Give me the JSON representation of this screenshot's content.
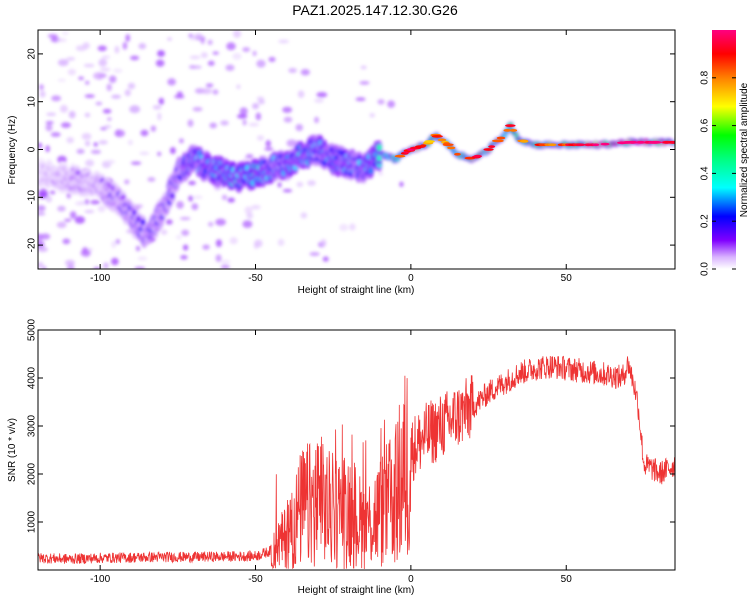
{
  "title": "PAZ1.2025.147.12.30.G26",
  "chart_data": [
    {
      "type": "heatmap",
      "xlabel": "Height of straight line (km)",
      "ylabel": "Frequency (Hz)",
      "xlim": [
        -120,
        85
      ],
      "ylim": [
        -25,
        25
      ],
      "xticks": [
        -100,
        -50,
        0,
        50
      ],
      "yticks": [
        -20,
        -10,
        0,
        10,
        20
      ],
      "colorbar": {
        "label": "Normalized spectral amplitude",
        "range": [
          0,
          1
        ],
        "ticks": [
          0.0,
          0.2,
          0.4,
          0.6,
          0.8
        ],
        "tick_labels": [
          "0.0",
          "0.2",
          "0.4",
          "0.6",
          "0.8"
        ],
        "colormap": [
          "#ffffff",
          "#8000ff",
          "#0000ff",
          "#00ffff",
          "#00ff00",
          "#ffff00",
          "#ff8000",
          "#ff0000",
          "#ff0080"
        ]
      },
      "ridge": {
        "x": [
          -120,
          -110,
          -100,
          -95,
          -90,
          -85,
          -80,
          -75,
          -70,
          -65,
          -60,
          -55,
          -50,
          -45,
          -40,
          -35,
          -30,
          -25,
          -20,
          -15,
          -10,
          -5,
          0,
          5,
          8,
          12,
          15,
          20,
          25,
          30,
          32,
          35,
          40,
          50,
          60,
          70,
          80,
          85
        ],
        "y": [
          -5,
          -6,
          -8,
          -10,
          -14,
          -18,
          -13,
          -5,
          -2,
          -4,
          -5,
          -6,
          -5,
          -4,
          -3,
          -1,
          0,
          -2,
          -3,
          -4,
          -1,
          -2,
          0,
          1,
          3,
          1,
          -1,
          -2,
          0,
          3,
          5,
          2,
          1,
          1,
          1,
          1.5,
          1.5,
          1.5
        ]
      },
      "ridge_amplitude": [
        0.05,
        0.1,
        0.1,
        0.15,
        0.15,
        0.2,
        0.15,
        0.2,
        0.3,
        0.3,
        0.35,
        0.35,
        0.35,
        0.3,
        0.3,
        0.35,
        0.3,
        0.3,
        0.3,
        0.3,
        0.4,
        0.45,
        0.7,
        0.5,
        0.55,
        0.5,
        0.55,
        0.6,
        0.65,
        0.6,
        0.6,
        0.55,
        0.55,
        0.6,
        0.75,
        0.8,
        0.75,
        0.7
      ]
    },
    {
      "type": "line",
      "xlabel": "Height of straight line (km)",
      "ylabel": "SNR (10 * v/v)",
      "xlim": [
        -120,
        85
      ],
      "ylim": [
        0,
        5000
      ],
      "xticks": [
        -100,
        -50,
        0,
        50
      ],
      "yticks": [
        1000,
        2000,
        3000,
        4000,
        5000
      ],
      "color": "#ee3333",
      "series": [
        {
          "x": [
            -120,
            -110,
            -100,
            -90,
            -80,
            -70,
            -60,
            -50,
            -45,
            -40,
            -35,
            -30,
            -25,
            -20,
            -15,
            -10,
            -5,
            0,
            5,
            10,
            15,
            20,
            25,
            30,
            35,
            40,
            45,
            50,
            55,
            60,
            65,
            68,
            70,
            72,
            73,
            75,
            78,
            80,
            85
          ],
          "y": [
            250,
            230,
            250,
            260,
            270,
            270,
            280,
            290,
            400,
            700,
            1300,
            1400,
            1200,
            1300,
            900,
            1200,
            1500,
            2500,
            2800,
            3000,
            3200,
            3400,
            3700,
            3900,
            4100,
            4200,
            4250,
            4200,
            4150,
            4100,
            4050,
            4000,
            4300,
            3800,
            3500,
            2200,
            2100,
            2000,
            2200
          ]
        }
      ]
    }
  ]
}
